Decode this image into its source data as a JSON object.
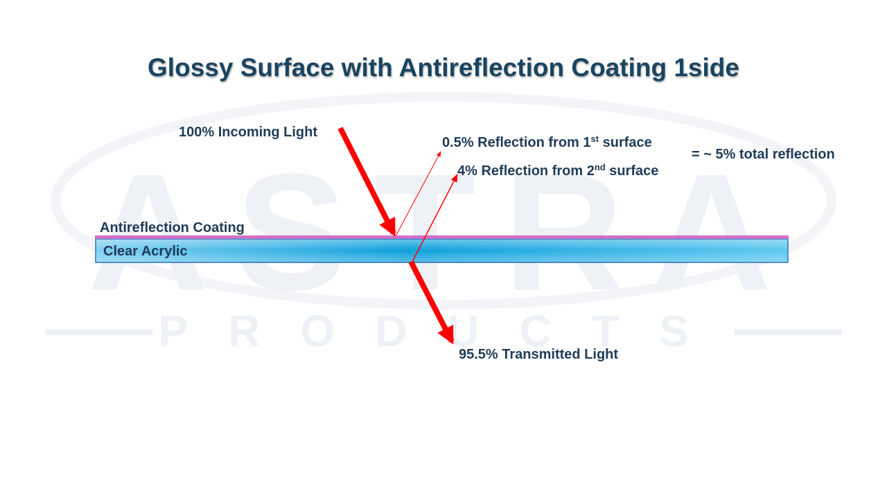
{
  "title": "Glossy Surface with Antireflection Coating 1side",
  "watermark": {
    "brand": "ASTRA",
    "tagline": "PRODUCTS"
  },
  "labels": {
    "incoming": "100% Incoming Light",
    "reflection_1": {
      "text": "0.5% Reflection from 1",
      "sup": "st",
      "tail": " surface"
    },
    "reflection_2": {
      "text": "4% Reflection from 2",
      "sup": "nd",
      "tail": " surface"
    },
    "total": "= ~ 5% total reflection",
    "coating": "Antireflection Coating",
    "acrylic": "Clear Acrylic",
    "transmitted": "95.5% Transmitted Light"
  }
}
